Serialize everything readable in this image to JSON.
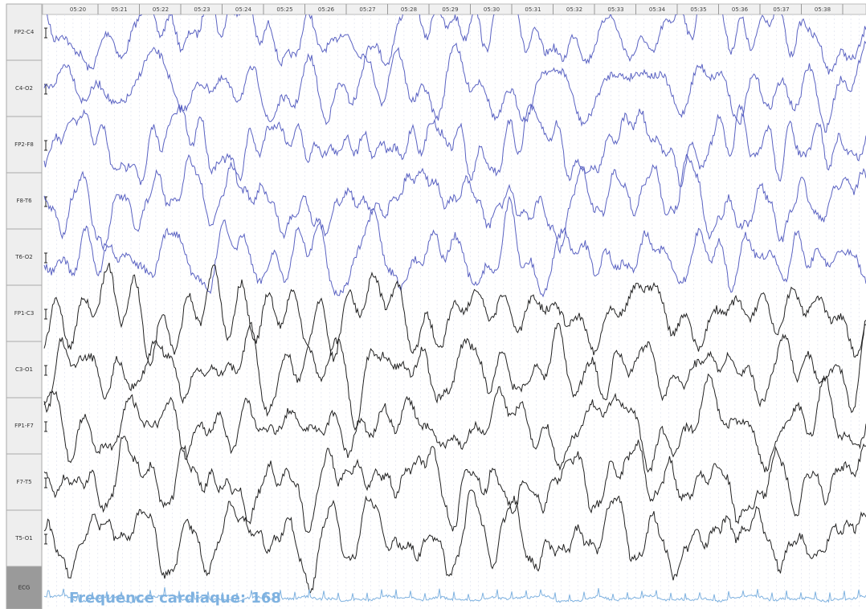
{
  "time_labels": [
    "05:20",
    "05:21",
    "05:22",
    "05:23",
    "05:24",
    "05:25",
    "05:26",
    "05:27",
    "05:28",
    "05:29",
    "05:30",
    "05:31",
    "05:32",
    "05:33",
    "05:34",
    "05:35",
    "05:36",
    "05:37",
    "05:38"
  ],
  "channels": [
    "FP2-C4",
    "C4-O2",
    "FP2-F8",
    "F8-T6",
    "T6-O2",
    "FP1-C3",
    "C3-O1",
    "FP1-F7",
    "F7-T5",
    "T5-O1",
    "ECG"
  ],
  "heart_rate_text": "Frequence cardiaque: 168"
}
